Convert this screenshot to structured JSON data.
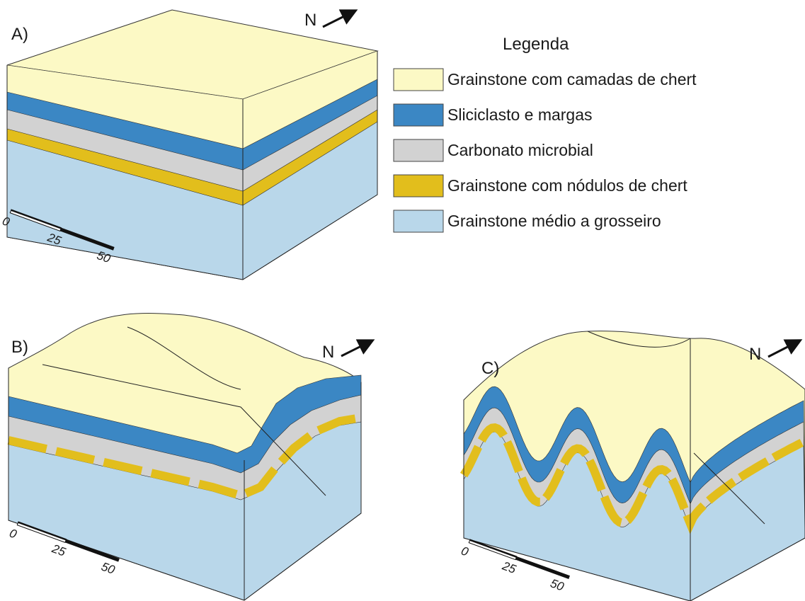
{
  "panels": [
    {
      "label": "A)",
      "north": "N",
      "scale": {
        "start": "0",
        "mid": "25",
        "end": "50"
      }
    },
    {
      "label": "B)",
      "north": "N",
      "scale": {
        "start": "0",
        "mid": "25",
        "end": "50"
      }
    },
    {
      "label": "C)",
      "north": "N",
      "scale": {
        "start": "0",
        "mid": "25",
        "end": "50"
      }
    }
  ],
  "legend": {
    "title": "Legenda",
    "items": [
      "Grainstone com camadas de chert",
      "Sliciclasto e margas",
      "Carbonato microbial",
      "Grainstone com nódulos de chert",
      "Grainstone médio a grosseiro"
    ]
  }
}
